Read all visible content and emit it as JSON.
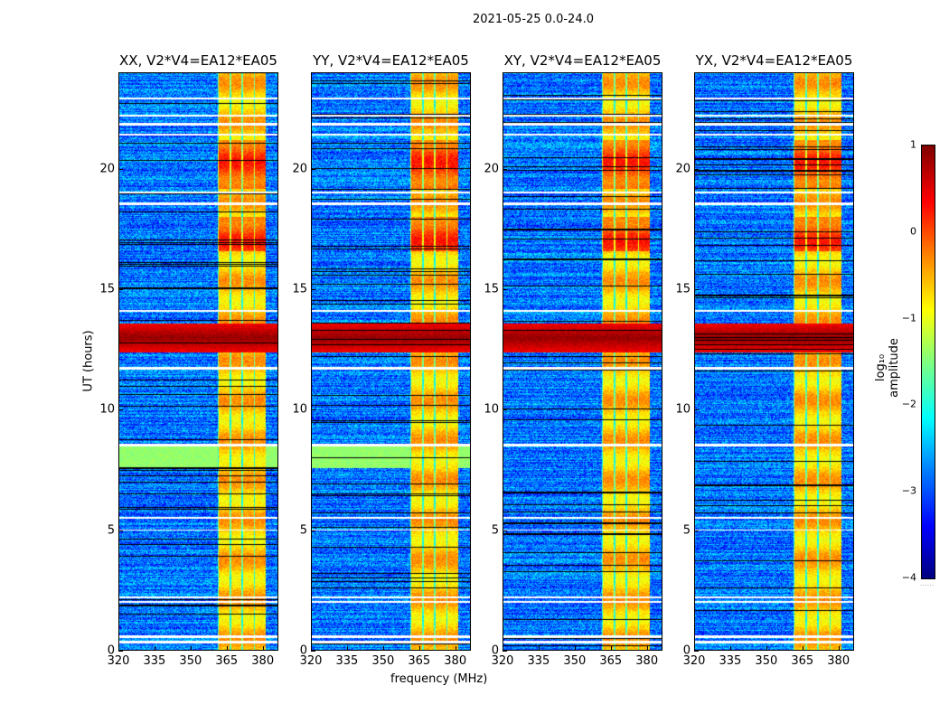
{
  "chart_data": {
    "type": "heatmap",
    "title": "2021-05-25 0.0-24.0",
    "xlabel": "frequency (MHz)",
    "ylabel": "UT (hours)",
    "xlim": [
      320,
      386.5
    ],
    "ylim": [
      0,
      24
    ],
    "xticks": [
      "320",
      "335",
      "350",
      "365",
      "380"
    ],
    "yticks": [
      "0",
      "5",
      "10",
      "15",
      "20"
    ],
    "panels": [
      {
        "title": "XX, V2*V4=EA12*EA05",
        "green_band": true
      },
      {
        "title": "YY, V2*V4=EA12*EA05",
        "green_band": true
      },
      {
        "title": "XY, V2*V4=EA12*EA05",
        "green_band": false
      },
      {
        "title": "YX, V2*V4=EA12*EA05",
        "green_band": false
      }
    ],
    "background_level": -2.8,
    "rfi_band_mhz": [
      361,
      381
    ],
    "rfi_band_level": -0.6,
    "strong_rfi_hours": [
      [
        12.4,
        13.6
      ]
    ],
    "strong_rfi_level": 0.9,
    "elevated_band_hours": [
      [
        16.6,
        18.0
      ],
      [
        19.2,
        21.2
      ]
    ],
    "green_band_hours": [
      [
        7.6,
        8.5
      ]
    ],
    "flagged_hours": [
      [
        0.3,
        0.45
      ],
      [
        0.55,
        0.65
      ],
      [
        2.0,
        2.1
      ],
      [
        2.2,
        2.25
      ],
      [
        5.0,
        5.05
      ],
      [
        5.5,
        5.55
      ],
      [
        8.5,
        8.6
      ],
      [
        11.7,
        11.8
      ],
      [
        14.1,
        14.15
      ],
      [
        18.5,
        18.6
      ],
      [
        19.0,
        19.05
      ],
      [
        21.4,
        21.45
      ],
      [
        21.8,
        21.9
      ],
      [
        22.2,
        22.25
      ],
      [
        22.9,
        22.95
      ]
    ],
    "colorbar": {
      "label": "log₁₀ amplitude",
      "ticks": [
        "1",
        "0",
        "−1",
        "−2",
        "−3",
        "−4"
      ],
      "range": [
        -4,
        1
      ],
      "colormap": "jet"
    }
  }
}
